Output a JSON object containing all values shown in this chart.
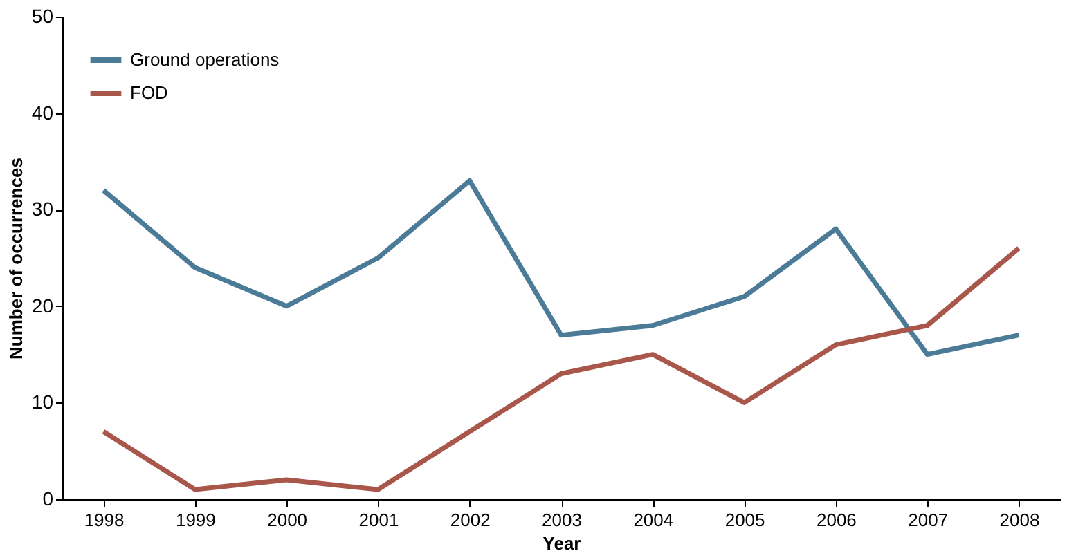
{
  "chart_data": {
    "type": "line",
    "xlabel": "Year",
    "ylabel": "Number of occurrences",
    "categories": [
      "1998",
      "1999",
      "2000",
      "2001",
      "2002",
      "2003",
      "2004",
      "2005",
      "2006",
      "2007",
      "2008"
    ],
    "series": [
      {
        "name": "Ground operations",
        "color": "#4c7b98",
        "values": [
          32,
          24,
          20,
          25,
          33,
          17,
          18,
          21,
          28,
          15,
          17
        ]
      },
      {
        "name": "FOD",
        "color": "#a9574b",
        "values": [
          7,
          1,
          2,
          1,
          7,
          13,
          15,
          10,
          16,
          18,
          26
        ]
      }
    ],
    "ylim": [
      0,
      50
    ],
    "yticks": [
      0,
      10,
      20,
      30,
      40,
      50
    ],
    "grid": false,
    "legend": "top left",
    "marker": "none",
    "line_style": "solid"
  }
}
